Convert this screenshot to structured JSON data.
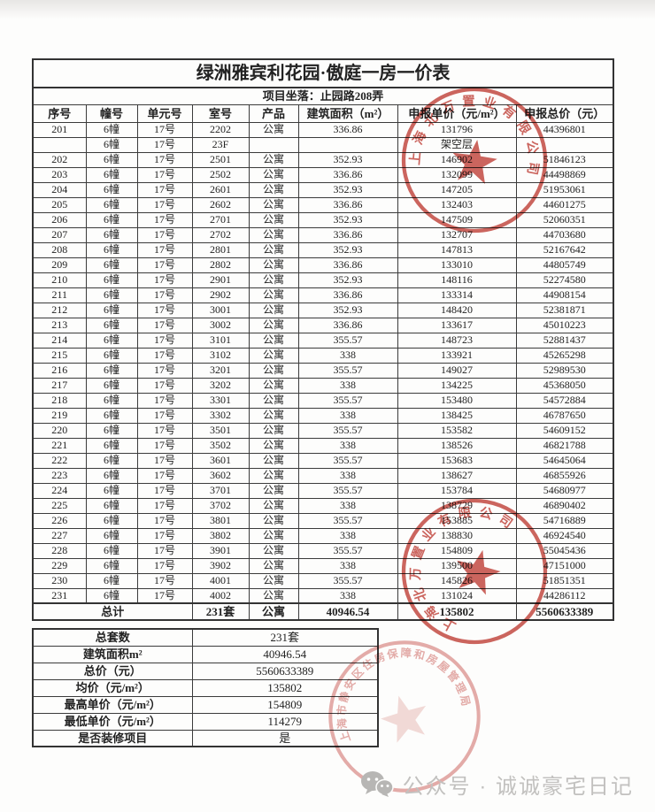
{
  "header": {
    "title": "绿洲雅宾利花园·傲庭一房一价表",
    "location": "项目坐落：止园路208弄"
  },
  "table": {
    "headers": [
      "序号",
      "幢号",
      "单元号",
      "室号",
      "产品",
      "建筑面积（m²）",
      "申报单价（元/m²）",
      "申报总价（元）"
    ],
    "rows": [
      [
        "201",
        "6幢",
        "17号",
        "2202",
        "公寓",
        "336.86",
        "131796",
        "44396801"
      ],
      [
        "",
        "6幢",
        "17号",
        "23F",
        "",
        "",
        "架空层",
        ""
      ],
      [
        "202",
        "6幢",
        "17号",
        "2501",
        "公寓",
        "352.93",
        "146902",
        "51846123"
      ],
      [
        "203",
        "6幢",
        "17号",
        "2502",
        "公寓",
        "336.86",
        "132099",
        "44498869"
      ],
      [
        "204",
        "6幢",
        "17号",
        "2601",
        "公寓",
        "352.93",
        "147205",
        "51953061"
      ],
      [
        "205",
        "6幢",
        "17号",
        "2602",
        "公寓",
        "336.86",
        "132403",
        "44601275"
      ],
      [
        "206",
        "6幢",
        "17号",
        "2701",
        "公寓",
        "352.93",
        "147509",
        "52060351"
      ],
      [
        "207",
        "6幢",
        "17号",
        "2702",
        "公寓",
        "336.86",
        "132707",
        "44703680"
      ],
      [
        "208",
        "6幢",
        "17号",
        "2801",
        "公寓",
        "352.93",
        "147813",
        "52167642"
      ],
      [
        "209",
        "6幢",
        "17号",
        "2802",
        "公寓",
        "336.86",
        "133010",
        "44805749"
      ],
      [
        "210",
        "6幢",
        "17号",
        "2901",
        "公寓",
        "352.93",
        "148116",
        "52274580"
      ],
      [
        "211",
        "6幢",
        "17号",
        "2902",
        "公寓",
        "336.86",
        "133314",
        "44908154"
      ],
      [
        "212",
        "6幢",
        "17号",
        "3001",
        "公寓",
        "352.93",
        "148420",
        "52381871"
      ],
      [
        "213",
        "6幢",
        "17号",
        "3002",
        "公寓",
        "336.86",
        "133617",
        "45010223"
      ],
      [
        "214",
        "6幢",
        "17号",
        "3101",
        "公寓",
        "355.57",
        "148723",
        "52881437"
      ],
      [
        "215",
        "6幢",
        "17号",
        "3102",
        "公寓",
        "338",
        "133921",
        "45265298"
      ],
      [
        "216",
        "6幢",
        "17号",
        "3201",
        "公寓",
        "355.57",
        "149027",
        "52989530"
      ],
      [
        "217",
        "6幢",
        "17号",
        "3202",
        "公寓",
        "338",
        "134225",
        "45368050"
      ],
      [
        "218",
        "6幢",
        "17号",
        "3301",
        "公寓",
        "355.57",
        "153480",
        "54572884"
      ],
      [
        "219",
        "6幢",
        "17号",
        "3302",
        "公寓",
        "338",
        "138425",
        "46787650"
      ],
      [
        "220",
        "6幢",
        "17号",
        "3501",
        "公寓",
        "355.57",
        "153582",
        "54609152"
      ],
      [
        "221",
        "6幢",
        "17号",
        "3502",
        "公寓",
        "338",
        "138526",
        "46821788"
      ],
      [
        "222",
        "6幢",
        "17号",
        "3601",
        "公寓",
        "355.57",
        "153683",
        "54645064"
      ],
      [
        "223",
        "6幢",
        "17号",
        "3602",
        "公寓",
        "338",
        "138627",
        "46855926"
      ],
      [
        "224",
        "6幢",
        "17号",
        "3701",
        "公寓",
        "355.57",
        "153784",
        "54680977"
      ],
      [
        "225",
        "6幢",
        "17号",
        "3702",
        "公寓",
        "338",
        "138729",
        "46890402"
      ],
      [
        "226",
        "6幢",
        "17号",
        "3801",
        "公寓",
        "355.57",
        "153885",
        "54716889"
      ],
      [
        "227",
        "6幢",
        "17号",
        "3802",
        "公寓",
        "338",
        "138830",
        "46924540"
      ],
      [
        "228",
        "6幢",
        "17号",
        "3901",
        "公寓",
        "355.57",
        "154809",
        "55045436"
      ],
      [
        "229",
        "6幢",
        "17号",
        "3902",
        "公寓",
        "338",
        "139500",
        "47151000"
      ],
      [
        "230",
        "6幢",
        "17号",
        "4001",
        "公寓",
        "355.57",
        "145826",
        "51851351"
      ],
      [
        "231",
        "6幢",
        "17号",
        "4002",
        "公寓",
        "338",
        "131024",
        "44286112"
      ]
    ],
    "total_row": [
      {
        "t": "总计",
        "cs": 3
      },
      {
        "t": "231套"
      },
      {
        "t": "公寓"
      },
      {
        "t": "40946.54"
      },
      {
        "t": "135802"
      },
      {
        "t": "5560633389"
      }
    ]
  },
  "summary": {
    "rows": [
      [
        "总套数",
        "231套"
      ],
      [
        "建筑面积m²",
        "40946.54"
      ],
      [
        "总价（元）",
        "5560633389"
      ],
      [
        "均价（元/m²）",
        "135802"
      ],
      [
        "最高单价（元/m²）",
        "154809"
      ],
      [
        "最低单价（元/m²）",
        "114279"
      ],
      [
        "是否装修项目",
        "是"
      ]
    ]
  },
  "stamps": [
    {
      "text": "上海北万置业有限公司",
      "color": "#c2443b"
    },
    {
      "text": "上海北万置业有限公司",
      "color": "#c2443b"
    },
    {
      "text": "上海市静安区住房保障和房屋管理局",
      "color": "#cf6a63"
    }
  ],
  "watermark": {
    "text": "公众号 · 诚诚豪宅日记"
  }
}
